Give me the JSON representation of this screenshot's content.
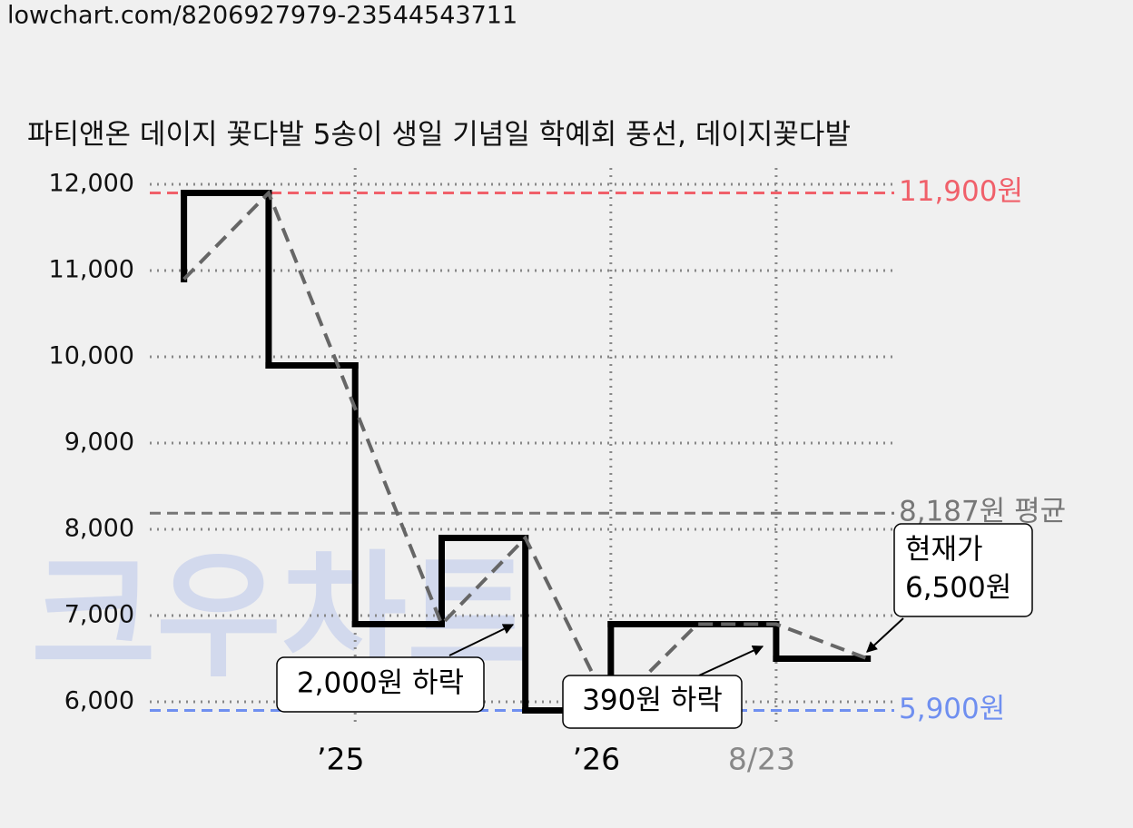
{
  "header": {
    "url": "lowchart.com/8206927979-23544543711"
  },
  "chart_data": {
    "type": "line",
    "title": "파티앤온 데이지 꽃다발 5송이 생일 기념일 학예회 풍선, 데이지꽃다발",
    "watermark": "크우차트",
    "series": [
      {
        "style": "step",
        "color": "#000000",
        "x": [
          2024.333,
          2024.333,
          2024.663,
          2025,
          2025.337,
          2025.663,
          2025.996,
          2026.64,
          2026.996
        ],
        "values": [
          10900,
          11900,
          9900,
          6900,
          7900,
          5900,
          6900,
          6500,
          6500
        ]
      },
      {
        "style": "dashed",
        "color": "#666666",
        "x": [
          2024.333,
          2024.663,
          2025.337,
          2025.663,
          2025.996,
          2026.333,
          2026.64,
          2026.996
        ],
        "values": [
          10900,
          11900,
          6900,
          7900,
          5900,
          6900,
          6900,
          6500
        ]
      }
    ],
    "reference_lines": [
      {
        "value": 11900,
        "label": "11,900원",
        "color": "#f0606a"
      },
      {
        "value": 8187,
        "label": "8,187원 평균",
        "color": "#777777"
      },
      {
        "value": 5900,
        "label": "5,900원",
        "color": "#6f8ff0"
      }
    ],
    "annotations": [
      {
        "lines": [
          "2,000원 하락"
        ]
      },
      {
        "lines": [
          "390원 하락"
        ]
      },
      {
        "lines": [
          "현재가",
          "6,500원"
        ]
      }
    ],
    "xlim": [
      2024.2,
      2027.1
    ],
    "xticks": [
      {
        "value": 2025,
        "label": "’25",
        "color": "#000000"
      },
      {
        "value": 2025.996,
        "label": "’26",
        "color": "#000000"
      },
      {
        "value": 2026.64,
        "label": "8/23",
        "color": "#888888"
      }
    ],
    "ylim": [
      5800,
      12100
    ],
    "yticks": [
      {
        "value": 6000,
        "label": "6,000"
      },
      {
        "value": 7000,
        "label": "7,000"
      },
      {
        "value": 8000,
        "label": "8,000"
      },
      {
        "value": 9000,
        "label": "9,000"
      },
      {
        "value": 10000,
        "label": "10,000"
      },
      {
        "value": 11000,
        "label": "11,000"
      },
      {
        "value": 12000,
        "label": "12,000"
      }
    ],
    "grid": true
  }
}
